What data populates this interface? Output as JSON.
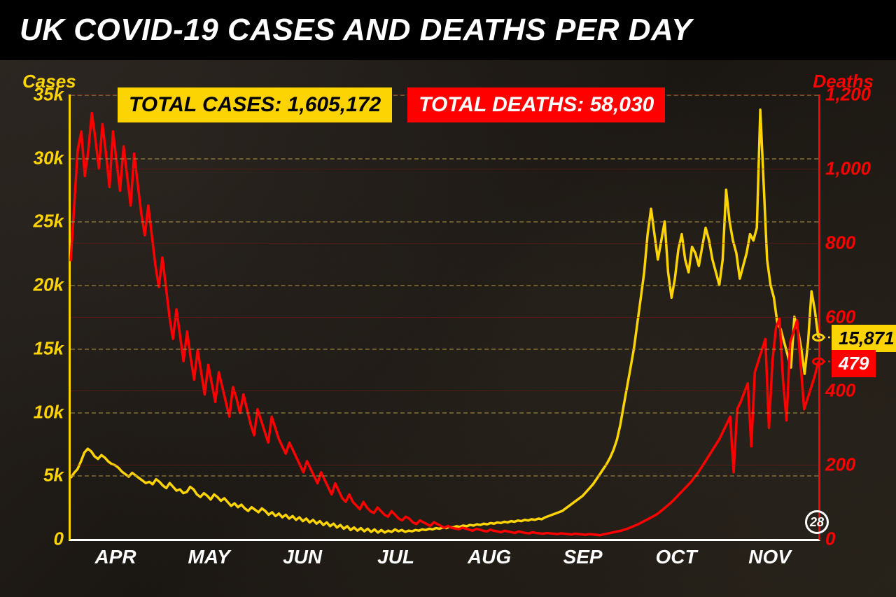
{
  "title": "UK COVID-19 CASES AND DEATHS PER DAY",
  "totals": {
    "cases_label": "TOTAL CASES: 1,605,172",
    "deaths_label": "TOTAL DEATHS: 58,030"
  },
  "left_axis": {
    "title": "Cases",
    "color": "#fcd303",
    "min": 0,
    "max": 35000,
    "tick_step": 5000,
    "tick_labels": [
      "0",
      "5k",
      "10k",
      "15k",
      "20k",
      "25k",
      "30k",
      "35k"
    ]
  },
  "right_axis": {
    "title": "Deaths",
    "color": "#ff0000",
    "min": 0,
    "max": 1200,
    "tick_step": 200,
    "tick_labels": [
      "0",
      "200",
      "400",
      "600",
      "800",
      "1,000",
      "1,200"
    ]
  },
  "x_axis": {
    "labels": [
      "APR",
      "MAY",
      "JUN",
      "JUL",
      "AUG",
      "SEP",
      "OCT",
      "NOV"
    ],
    "positions_pct": [
      6,
      18.5,
      31,
      43.5,
      56,
      68.5,
      81,
      93.5
    ],
    "color": "#ffffff"
  },
  "end_day_label": "28",
  "end_values": {
    "cases": "15,871",
    "deaths": "479"
  },
  "chart": {
    "type": "dual-axis-line",
    "background_color": "#1a1612",
    "grid_color_left": "#a89040",
    "grid_color_right": "#7a1818",
    "line_width": 3.5,
    "cases_color": "#fcd303",
    "deaths_color": "#ff0000"
  },
  "series": {
    "cases": [
      4800,
      5200,
      5500,
      6100,
      6800,
      7100,
      6900,
      6500,
      6300,
      6600,
      6400,
      6100,
      5900,
      5800,
      5600,
      5300,
      5100,
      4900,
      5200,
      5000,
      4800,
      4600,
      4400,
      4500,
      4300,
      4700,
      4500,
      4200,
      4000,
      4400,
      4100,
      3800,
      3900,
      3600,
      3700,
      4100,
      3900,
      3500,
      3300,
      3600,
      3400,
      3100,
      3500,
      3300,
      3000,
      3200,
      2900,
      2600,
      2800,
      2500,
      2700,
      2400,
      2200,
      2500,
      2300,
      2100,
      2400,
      2200,
      1900,
      2100,
      1800,
      2000,
      1700,
      1900,
      1600,
      1800,
      1500,
      1700,
      1400,
      1600,
      1300,
      1500,
      1200,
      1400,
      1100,
      1300,
      1000,
      1200,
      900,
      1100,
      800,
      1000,
      700,
      900,
      650,
      850,
      600,
      800,
      550,
      750,
      500,
      700,
      500,
      650,
      550,
      750,
      600,
      700,
      550,
      650,
      600,
      700,
      650,
      750,
      700,
      800,
      750,
      850,
      800,
      900,
      850,
      950,
      900,
      1000,
      950,
      1050,
      1000,
      1100,
      1050,
      1150,
      1100,
      1200,
      1150,
      1250,
      1200,
      1300,
      1250,
      1350,
      1300,
      1400,
      1350,
      1450,
      1400,
      1500,
      1450,
      1550,
      1500,
      1600,
      1550,
      1700,
      1800,
      1900,
      2000,
      2100,
      2200,
      2400,
      2600,
      2800,
      3000,
      3200,
      3400,
      3700,
      4000,
      4300,
      4700,
      5100,
      5500,
      5900,
      6400,
      7000,
      7800,
      9000,
      10500,
      12000,
      13500,
      15000,
      17000,
      19000,
      21000,
      24000,
      26000,
      24000,
      22000,
      23500,
      25000,
      21000,
      19000,
      20500,
      22800,
      24000,
      22000,
      21000,
      23000,
      22500,
      21500,
      23000,
      24500,
      23500,
      22000,
      21000,
      20000,
      22000,
      27500,
      25000,
      23500,
      22500,
      20500,
      21500,
      22500,
      24000,
      23500,
      24500,
      33800,
      28000,
      22000,
      20000,
      19000,
      17000,
      16500,
      15500,
      14500,
      13500,
      17500,
      16500,
      15000,
      13000,
      15500,
      19500,
      18000,
      15871
    ],
    "deaths": [
      750,
      900,
      1050,
      1100,
      980,
      1050,
      1150,
      1080,
      1000,
      1120,
      1040,
      950,
      1100,
      1020,
      940,
      1060,
      980,
      900,
      1040,
      960,
      880,
      820,
      900,
      820,
      740,
      680,
      760,
      680,
      600,
      540,
      620,
      550,
      480,
      560,
      490,
      430,
      510,
      450,
      390,
      470,
      420,
      370,
      450,
      410,
      370,
      330,
      410,
      380,
      340,
      390,
      350,
      310,
      280,
      350,
      320,
      290,
      260,
      330,
      300,
      270,
      250,
      230,
      260,
      240,
      220,
      200,
      180,
      210,
      190,
      170,
      150,
      180,
      160,
      140,
      120,
      150,
      130,
      110,
      100,
      120,
      100,
      90,
      80,
      100,
      85,
      75,
      70,
      85,
      75,
      65,
      60,
      75,
      65,
      55,
      50,
      60,
      55,
      45,
      40,
      50,
      45,
      40,
      35,
      45,
      40,
      35,
      30,
      35,
      30,
      28,
      26,
      30,
      28,
      25,
      22,
      27,
      25,
      22,
      20,
      25,
      22,
      20,
      18,
      22,
      20,
      18,
      16,
      20,
      18,
      16,
      15,
      18,
      16,
      15,
      14,
      16,
      15,
      14,
      13,
      15,
      14,
      13,
      12,
      14,
      13,
      12,
      11,
      13,
      12,
      11,
      10,
      12,
      14,
      16,
      18,
      20,
      22,
      25,
      28,
      32,
      36,
      40,
      45,
      50,
      55,
      60,
      65,
      72,
      80,
      88,
      96,
      105,
      115,
      125,
      135,
      145,
      155,
      168,
      180,
      195,
      210,
      225,
      240,
      255,
      270,
      290,
      310,
      330,
      180,
      350,
      370,
      395,
      420,
      250,
      450,
      480,
      510,
      540,
      300,
      480,
      570,
      595,
      430,
      320,
      530,
      560,
      590,
      470,
      350,
      380,
      410,
      440,
      479
    ]
  }
}
